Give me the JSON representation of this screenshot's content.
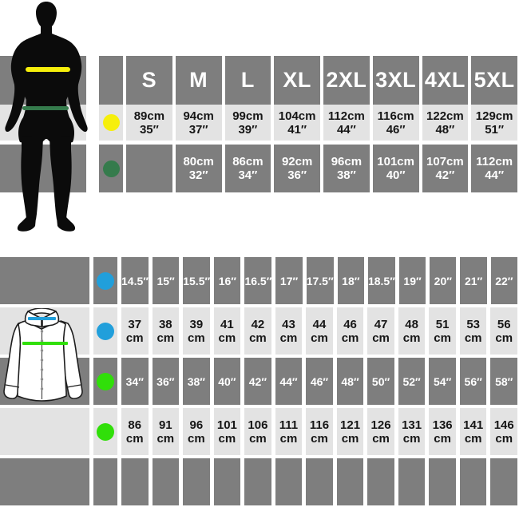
{
  "colors": {
    "dark_band": "#7e7e7e",
    "light_band": "#e3e3e3",
    "yellow": "#f6ef0b",
    "dark_green": "#357b4c",
    "blue": "#219fdb",
    "bright_green": "#30df09"
  },
  "top_table": {
    "sizes": [
      "S",
      "M",
      "L",
      "XL",
      "2XL",
      "3XL",
      "4XL",
      "5XL"
    ],
    "chest_row": {
      "dot": "yellow",
      "cells": [
        [
          "89cm",
          "35″"
        ],
        [
          "94cm",
          "37″"
        ],
        [
          "99cm",
          "39″"
        ],
        [
          "104cm",
          "41″"
        ],
        [
          "112cm",
          "44″"
        ],
        [
          "116cm",
          "46″"
        ],
        [
          "122cm",
          "48″"
        ],
        [
          "129cm",
          "51″"
        ]
      ]
    },
    "waist_row": {
      "dot": "dark_green",
      "cells": [
        [
          "",
          ""
        ],
        [
          "80cm",
          "32″"
        ],
        [
          "86cm",
          "34″"
        ],
        [
          "92cm",
          "36″"
        ],
        [
          "96cm",
          "38″"
        ],
        [
          "101cm",
          "40″"
        ],
        [
          "107cm",
          "42″"
        ],
        [
          "112cm",
          "44″"
        ]
      ]
    }
  },
  "bottom_table": {
    "rows": [
      {
        "dot": "blue",
        "theme": "dark",
        "single": true,
        "cells": [
          "14.5″",
          "15″",
          "15.5″",
          "16″",
          "16.5″",
          "17″",
          "17.5″",
          "18″",
          "18.5″",
          "19″",
          "20″",
          "21″",
          "22″"
        ]
      },
      {
        "dot": "blue",
        "theme": "light",
        "single": false,
        "cells": [
          [
            "37",
            "cm"
          ],
          [
            "38",
            "cm"
          ],
          [
            "39",
            "cm"
          ],
          [
            "41",
            "cm"
          ],
          [
            "42",
            "cm"
          ],
          [
            "43",
            "cm"
          ],
          [
            "44",
            "cm"
          ],
          [
            "46",
            "cm"
          ],
          [
            "47",
            "cm"
          ],
          [
            "48",
            "cm"
          ],
          [
            "51",
            "cm"
          ],
          [
            "53",
            "cm"
          ],
          [
            "56",
            "cm"
          ]
        ]
      },
      {
        "dot": "bright_green",
        "theme": "dark",
        "single": true,
        "cells": [
          "34″",
          "36″",
          "38″",
          "40″",
          "42″",
          "44″",
          "46″",
          "48″",
          "50″",
          "52″",
          "54″",
          "56″",
          "58″"
        ]
      },
      {
        "dot": "bright_green",
        "theme": "light",
        "single": false,
        "cells": [
          [
            "86",
            "cm"
          ],
          [
            "91",
            "cm"
          ],
          [
            "96",
            "cm"
          ],
          [
            "101",
            "cm"
          ],
          [
            "106",
            "cm"
          ],
          [
            "111",
            "cm"
          ],
          [
            "116",
            "cm"
          ],
          [
            "121",
            "cm"
          ],
          [
            "126",
            "cm"
          ],
          [
            "131",
            "cm"
          ],
          [
            "136",
            "cm"
          ],
          [
            "141",
            "cm"
          ],
          [
            "146",
            "cm"
          ]
        ]
      },
      {
        "dot": null,
        "theme": "dark",
        "single": true,
        "cells": [
          "",
          "",
          "",
          "",
          "",
          "",
          "",
          "",
          "",
          "",
          "",
          "",
          ""
        ]
      }
    ]
  },
  "chart_data": [
    {
      "type": "table",
      "columns": [
        "S",
        "M",
        "L",
        "XL",
        "2XL",
        "3XL",
        "4XL",
        "5XL"
      ],
      "rows": [
        {
          "legend_marker": "yellow-dot",
          "values_cm": [
            89,
            94,
            99,
            104,
            112,
            116,
            122,
            129
          ],
          "values_in": [
            35,
            37,
            39,
            41,
            44,
            46,
            48,
            51
          ]
        },
        {
          "legend_marker": "dark-green-dot",
          "values_cm": [
            null,
            80,
            86,
            92,
            96,
            101,
            107,
            112
          ],
          "values_in": [
            null,
            32,
            34,
            36,
            38,
            40,
            42,
            44
          ]
        }
      ]
    },
    {
      "type": "table",
      "rows": [
        {
          "legend_marker": "blue-dot",
          "unit": "in",
          "values": [
            14.5,
            15,
            15.5,
            16,
            16.5,
            17,
            17.5,
            18,
            18.5,
            19,
            20,
            21,
            22
          ]
        },
        {
          "legend_marker": "blue-dot",
          "unit": "cm",
          "values": [
            37,
            38,
            39,
            41,
            42,
            43,
            44,
            46,
            47,
            48,
            51,
            53,
            56
          ]
        },
        {
          "legend_marker": "green-dot",
          "unit": "in",
          "values": [
            34,
            36,
            38,
            40,
            42,
            44,
            46,
            48,
            50,
            52,
            54,
            56,
            58
          ]
        },
        {
          "legend_marker": "green-dot",
          "unit": "cm",
          "values": [
            86,
            91,
            96,
            101,
            106,
            111,
            116,
            121,
            126,
            131,
            136,
            141,
            146
          ]
        }
      ]
    }
  ]
}
